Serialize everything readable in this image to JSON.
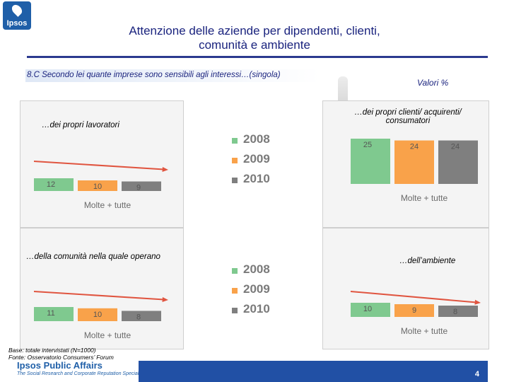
{
  "header": {
    "title_line1": "Attenzione delle aziende per dipendenti, clienti,",
    "title_line2": "comunità e ambiente",
    "question": "8.C Secondo lei quante imprese sono sensibili agli interessi…(singola)",
    "unit": "Valori %"
  },
  "legend": [
    "2008",
    "2009",
    "2010"
  ],
  "colors": {
    "2008": "#7fc98f",
    "2009": "#f9a24a",
    "2010": "#7f7f7f",
    "arrow": "#e05540",
    "brand": "#1f5fa8"
  },
  "chart_data": [
    {
      "type": "bar",
      "title": "…dei propri lavoratori",
      "categories": [
        "Molte + tutte"
      ],
      "series": [
        {
          "name": "2008",
          "values": [
            12
          ]
        },
        {
          "name": "2009",
          "values": [
            10
          ]
        },
        {
          "name": "2010",
          "values": [
            9
          ]
        }
      ]
    },
    {
      "type": "bar",
      "title": "…dei propri clienti/ acquirenti/ consumatori",
      "categories": [
        "Molte + tutte"
      ],
      "series": [
        {
          "name": "2008",
          "values": [
            25
          ]
        },
        {
          "name": "2009",
          "values": [
            24
          ]
        },
        {
          "name": "2010",
          "values": [
            24
          ]
        }
      ]
    },
    {
      "type": "bar",
      "title": "…della comunità nella quale operano",
      "categories": [
        "Molte + tutte"
      ],
      "series": [
        {
          "name": "2008",
          "values": [
            11
          ]
        },
        {
          "name": "2009",
          "values": [
            10
          ]
        },
        {
          "name": "2010",
          "values": [
            8
          ]
        }
      ]
    },
    {
      "type": "bar",
      "title": "…dell’ambiente",
      "categories": [
        "Molte + tutte"
      ],
      "series": [
        {
          "name": "2008",
          "values": [
            10
          ]
        },
        {
          "name": "2009",
          "values": [
            9
          ]
        },
        {
          "name": "2010",
          "values": [
            8
          ]
        }
      ]
    }
  ],
  "footer": {
    "base": "Base: totale intervistati (N=1000)",
    "source": "Fonte: Osservatorio Consumers’ Forum",
    "brand": "Ipsos Public Affairs",
    "brand_sub": "The Social Research and Corporate Reputation Specialists",
    "page_number": "4"
  }
}
